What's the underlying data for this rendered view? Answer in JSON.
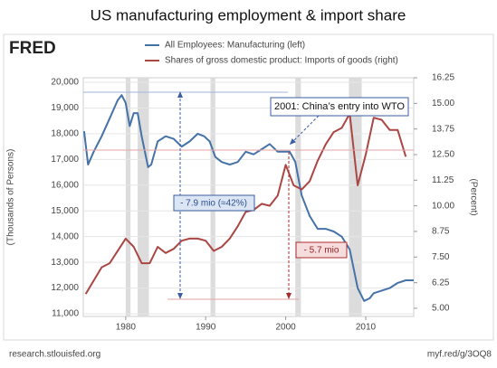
{
  "chart_data": {
    "type": "line",
    "title": "US manufacturing employment & import share",
    "logo": "FRED",
    "ylabel": "(Thousands of Persons)",
    "y2label": "(Percent)",
    "source": "research.stlouisfed.org",
    "link": "myf.red/g/3OQ8",
    "xlim": [
      1974.7,
      2016
    ],
    "xticks": [
      1980,
      1990,
      2000,
      2010
    ],
    "ylim": [
      10895,
      20176
    ],
    "yticks": [
      {
        "value": 11000,
        "label": "11,000"
      },
      {
        "value": 12000,
        "label": "12,000"
      },
      {
        "value": 13000,
        "label": "13,000"
      },
      {
        "value": 14000,
        "label": "14,000"
      },
      {
        "value": 15000,
        "label": "15,000"
      },
      {
        "value": 16000,
        "label": "16,000"
      },
      {
        "value": 17000,
        "label": "17,000"
      },
      {
        "value": 18000,
        "label": "18,000"
      },
      {
        "value": 19000,
        "label": "19,000"
      },
      {
        "value": 20000,
        "label": "20,000"
      }
    ],
    "y2lim": [
      4.6,
      16.25
    ],
    "y2ticks": [
      {
        "value": 5,
        "label": "5.00"
      },
      6.25,
      {
        "value": 7.5,
        "label": "7.50"
      },
      8.75,
      {
        "value": 10,
        "label": "10.00"
      },
      11.25,
      {
        "value": 12.5,
        "label": "12.50"
      },
      13.75,
      {
        "value": 15,
        "label": "15.00"
      },
      16.25
    ],
    "grid": true,
    "shaded_periods": [
      [
        1980.0,
        1980.6
      ],
      [
        1981.5,
        1982.9
      ],
      [
        1990.6,
        1991.2
      ],
      [
        2001.2,
        2001.9
      ],
      [
        2007.9,
        2009.5
      ]
    ],
    "series": [
      {
        "name": "All Employees: Manufacturing (left)",
        "color": "#4572a7",
        "x": [
          1974.8,
          1975.3,
          1976,
          1977,
          1978,
          1979,
          1979.5,
          1980,
          1980.5,
          1981,
          1981.5,
          1982,
          1982.8,
          1983.2,
          1984,
          1985,
          1986,
          1987,
          1988,
          1989,
          1989.8,
          1990.5,
          1991.2,
          1992,
          1993,
          1994,
          1995,
          1996,
          1997,
          1998,
          1999,
          2000,
          2000.5,
          2001.2,
          2002,
          2003,
          2004,
          2005,
          2006,
          2007,
          2008,
          2009,
          2009.8,
          2010.5,
          2011,
          2012,
          2013,
          2014,
          2015,
          2016
        ],
        "values": [
          18100,
          16800,
          17300,
          17900,
          18600,
          19300,
          19500,
          19200,
          18300,
          18800,
          18800,
          17900,
          16700,
          16800,
          17700,
          17900,
          17800,
          17500,
          17700,
          18000,
          17900,
          17700,
          17100,
          16900,
          16800,
          16900,
          17300,
          17200,
          17400,
          17600,
          17300,
          17300,
          17300,
          16900,
          15600,
          14800,
          14300,
          14300,
          14200,
          14000,
          13500,
          12000,
          11500,
          11600,
          11800,
          11900,
          12000,
          12200,
          12300,
          12300
        ]
      },
      {
        "name": "Shares of gross domestic product: Imports of goods (right)",
        "color": "#aa4643",
        "axis": "y2",
        "x": [
          1975,
          1977,
          1978,
          1980,
          1981,
          1982,
          1983,
          1984,
          1985,
          1986,
          1987,
          1988,
          1989,
          1990,
          1991,
          1992,
          1993,
          1994,
          1995,
          1996,
          1997,
          1998,
          1999,
          2000,
          2001,
          2002,
          2003,
          2004,
          2005,
          2006,
          2007,
          2008,
          2009,
          2010,
          2011,
          2012,
          2013,
          2014,
          2015
        ],
        "values": [
          5.7,
          7.0,
          7.2,
          8.4,
          8.0,
          7.2,
          7.2,
          8.0,
          7.7,
          7.9,
          8.3,
          8.4,
          8.4,
          8.3,
          7.8,
          8.0,
          8.4,
          9.0,
          9.7,
          9.8,
          10.1,
          10.0,
          10.5,
          12.0,
          11.0,
          10.8,
          11.2,
          12.2,
          13.0,
          13.6,
          13.8,
          14.5,
          11.0,
          12.5,
          14.3,
          14.2,
          13.7,
          13.7,
          12.4
        ]
      }
    ],
    "annotations": [
      "2001: China’s entry into WTO",
      "- 7.9 mio (≈42%)",
      "- 5.7 mio"
    ]
  }
}
